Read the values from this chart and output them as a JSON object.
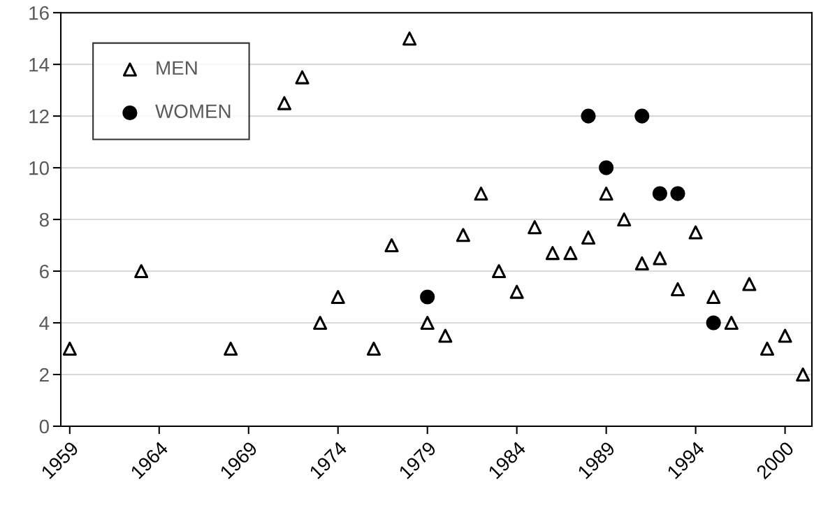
{
  "chart_data": {
    "type": "scatter",
    "categories": [
      "1959",
      null,
      null,
      null,
      null,
      "1964",
      null,
      null,
      null,
      null,
      "1969",
      null,
      null,
      null,
      null,
      "1974",
      null,
      null,
      null,
      null,
      "1979",
      null,
      null,
      null,
      null,
      "1984",
      null,
      null,
      null,
      null,
      "1989",
      null,
      null,
      null,
      null,
      "1994",
      null,
      null,
      null,
      null,
      "2000",
      null
    ],
    "series": [
      {
        "name": "MEN",
        "color": "#000000",
        "marker": "triangle",
        "values": [
          3,
          null,
          null,
          null,
          6,
          null,
          null,
          null,
          null,
          3,
          null,
          null,
          12.5,
          13.5,
          4,
          5,
          null,
          3,
          7,
          15,
          4,
          3.5,
          7.4,
          9,
          6,
          5.2,
          7.7,
          6.7,
          6.7,
          7.3,
          9,
          8,
          6.3,
          6.5,
          5.3,
          7.5,
          5,
          4,
          5.5,
          3,
          3.5,
          2
        ]
      },
      {
        "name": "WOMEN",
        "color": "#000000",
        "marker": "circle",
        "values": [
          null,
          null,
          null,
          null,
          null,
          null,
          null,
          null,
          null,
          null,
          null,
          null,
          null,
          null,
          null,
          null,
          null,
          null,
          null,
          null,
          5,
          null,
          null,
          null,
          null,
          null,
          null,
          null,
          null,
          12,
          10,
          null,
          12,
          9,
          9,
          null,
          4,
          null,
          null,
          null,
          null,
          null
        ]
      }
    ],
    "ylim": [
      0,
      16
    ],
    "yticks": [
      0,
      2,
      4,
      6,
      8,
      10,
      12,
      14,
      16
    ],
    "grid": "y",
    "legend": "top left"
  }
}
